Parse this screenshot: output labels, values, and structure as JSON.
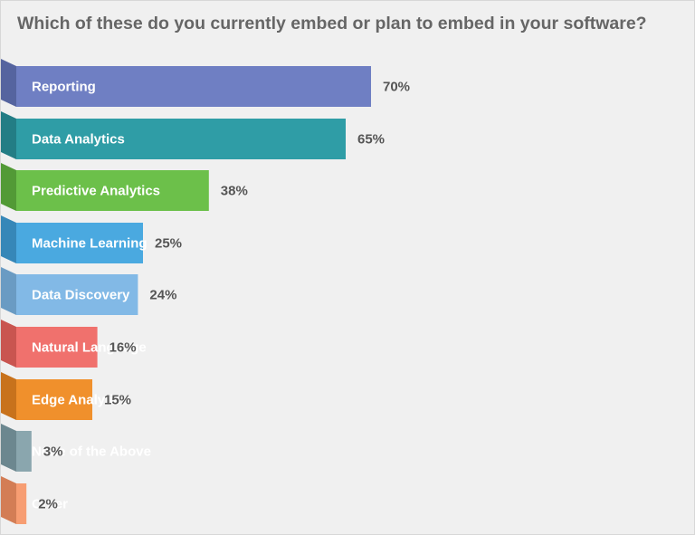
{
  "title": "Which of these do you currently embed or plan to embed in your software?",
  "chart_data": {
    "type": "bar",
    "orientation": "horizontal",
    "title": "Which of these do you currently embed or plan to embed in your software?",
    "categories": [
      "Reporting",
      "Data Analytics",
      "Predictive Analytics",
      "Machine Learning",
      "Data Discovery",
      "Natural Language",
      "Edge Analytics",
      "None of the Above",
      "Other"
    ],
    "values": [
      70,
      65,
      38,
      25,
      24,
      16,
      15,
      3,
      2
    ],
    "value_labels": [
      "70%",
      "65%",
      "38%",
      "25%",
      "24%",
      "16%",
      "15%",
      "3%",
      "2%"
    ],
    "unit": "%",
    "xlim": [
      0,
      100
    ],
    "grid": false,
    "legend": "none",
    "colors": [
      "#6f7fc3",
      "#2f9da6",
      "#6cc04a",
      "#4aa9e0",
      "#82b9e6",
      "#f0716d",
      "#f0902c",
      "#8aa6ae",
      "#f79d72"
    ],
    "fold_colors": [
      "#55649f",
      "#237d85",
      "#529a36",
      "#3687b8",
      "#6a9bc3",
      "#c95550",
      "#c8721c",
      "#6c878f",
      "#d37d55"
    ]
  }
}
